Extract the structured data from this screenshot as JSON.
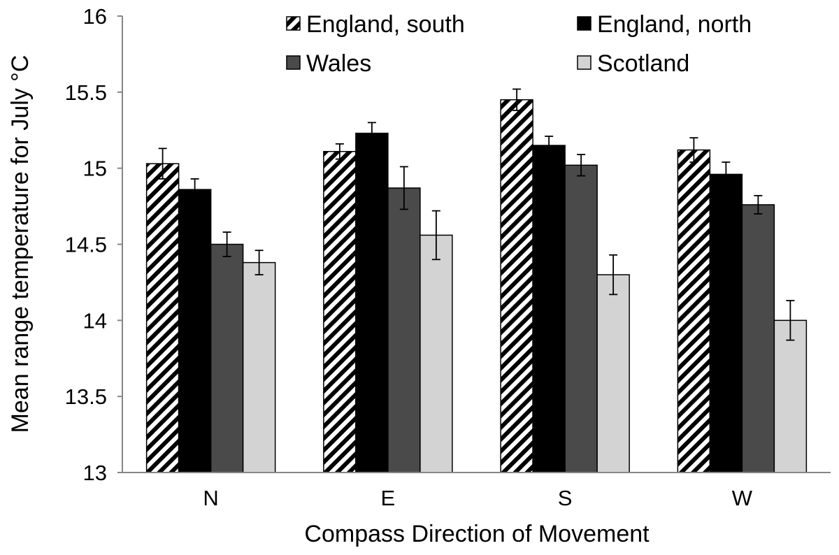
{
  "chart_data": {
    "type": "bar",
    "categories": [
      "N",
      "E",
      "S",
      "W"
    ],
    "series": [
      {
        "name": "England, south",
        "values": [
          15.03,
          15.11,
          15.45,
          15.12
        ],
        "errors": [
          0.1,
          0.05,
          0.07,
          0.08
        ],
        "fill": "hatch"
      },
      {
        "name": "England, north",
        "values": [
          14.86,
          15.23,
          15.15,
          14.96
        ],
        "errors": [
          0.07,
          0.07,
          0.06,
          0.08
        ],
        "fill": "#000000"
      },
      {
        "name": "Wales",
        "values": [
          14.5,
          14.87,
          15.02,
          14.76
        ],
        "errors": [
          0.08,
          0.14,
          0.07,
          0.06
        ],
        "fill": "#4a4a4a"
      },
      {
        "name": "Scotland",
        "values": [
          14.38,
          14.56,
          14.3,
          14.0
        ],
        "errors": [
          0.08,
          0.16,
          0.13,
          0.13
        ],
        "fill": "#d3d3d3"
      }
    ],
    "xlabel": "Compass Direction of Movement",
    "ylabel": "Mean range temperature for July °C",
    "ylim": [
      13,
      16
    ],
    "yticks": [
      "13",
      "13.5",
      "14",
      "14.5",
      "15",
      "15.5",
      "16"
    ],
    "grid": false,
    "legend": "top"
  }
}
